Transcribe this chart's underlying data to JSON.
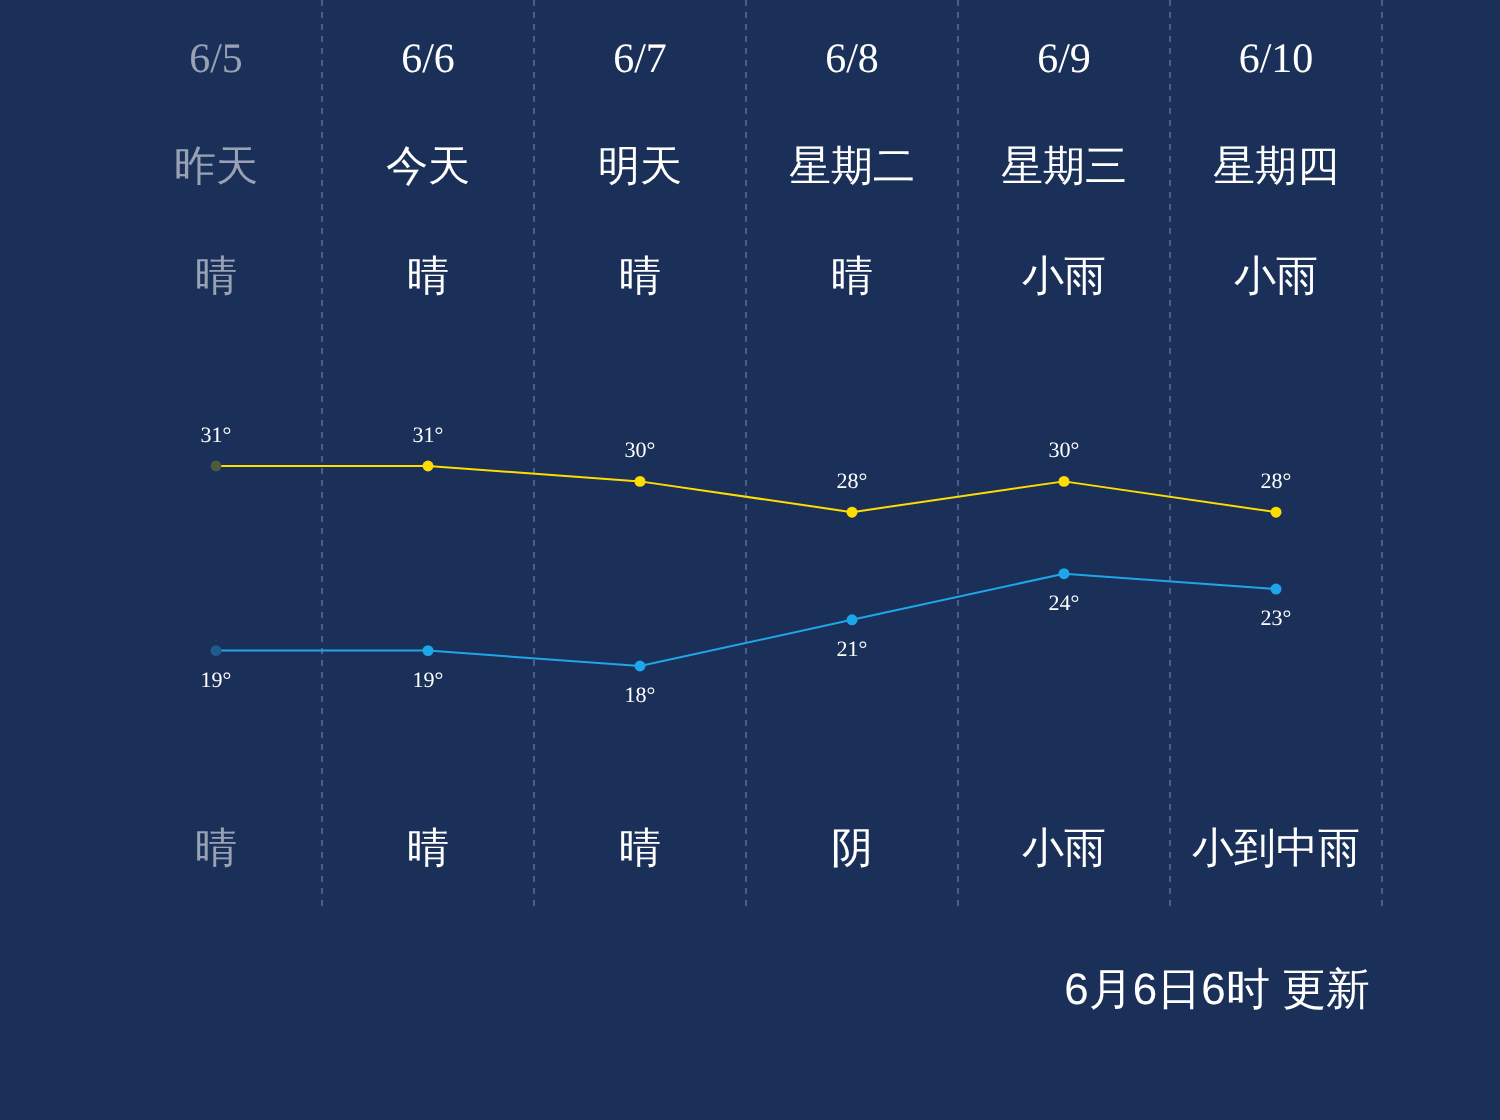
{
  "chart_data": {
    "type": "line",
    "categories": [
      "6/5",
      "6/6",
      "6/7",
      "6/8",
      "6/9",
      "6/10"
    ],
    "series": [
      {
        "color": "#ffdd00",
        "colors": [
          "#4d5a3c",
          "#ffdd00",
          "#ffdd00",
          "#ffdd00",
          "#ffdd00",
          "#ffdd00"
        ],
        "values": [
          31,
          31,
          30,
          28,
          30,
          28
        ],
        "value_labels": [
          "31°",
          "31°",
          "30°",
          "28°",
          "30°",
          "28°"
        ]
      },
      {
        "color": "#1ea7e8",
        "colors": [
          "#1f5a8c",
          "#1ea7e8",
          "#1ea7e8",
          "#1ea7e8",
          "#1ea7e8",
          "#1ea7e8"
        ],
        "values": [
          19,
          19,
          18,
          21,
          24,
          23
        ],
        "value_labels": [
          "19°",
          "19°",
          "18°",
          "21°",
          "24°",
          "23°"
        ]
      }
    ],
    "marker": "circle",
    "grid": "x",
    "tick_labels": "x",
    "annotations": [
      "昨天",
      "今天",
      "明天",
      "星期二",
      "星期三",
      "星期四",
      "晴",
      "晴",
      "晴",
      "晴",
      "小雨",
      "小雨",
      "晴",
      "晴",
      "晴",
      "阴",
      "小雨",
      "小到中雨",
      "6月6日6时 更新"
    ]
  }
}
